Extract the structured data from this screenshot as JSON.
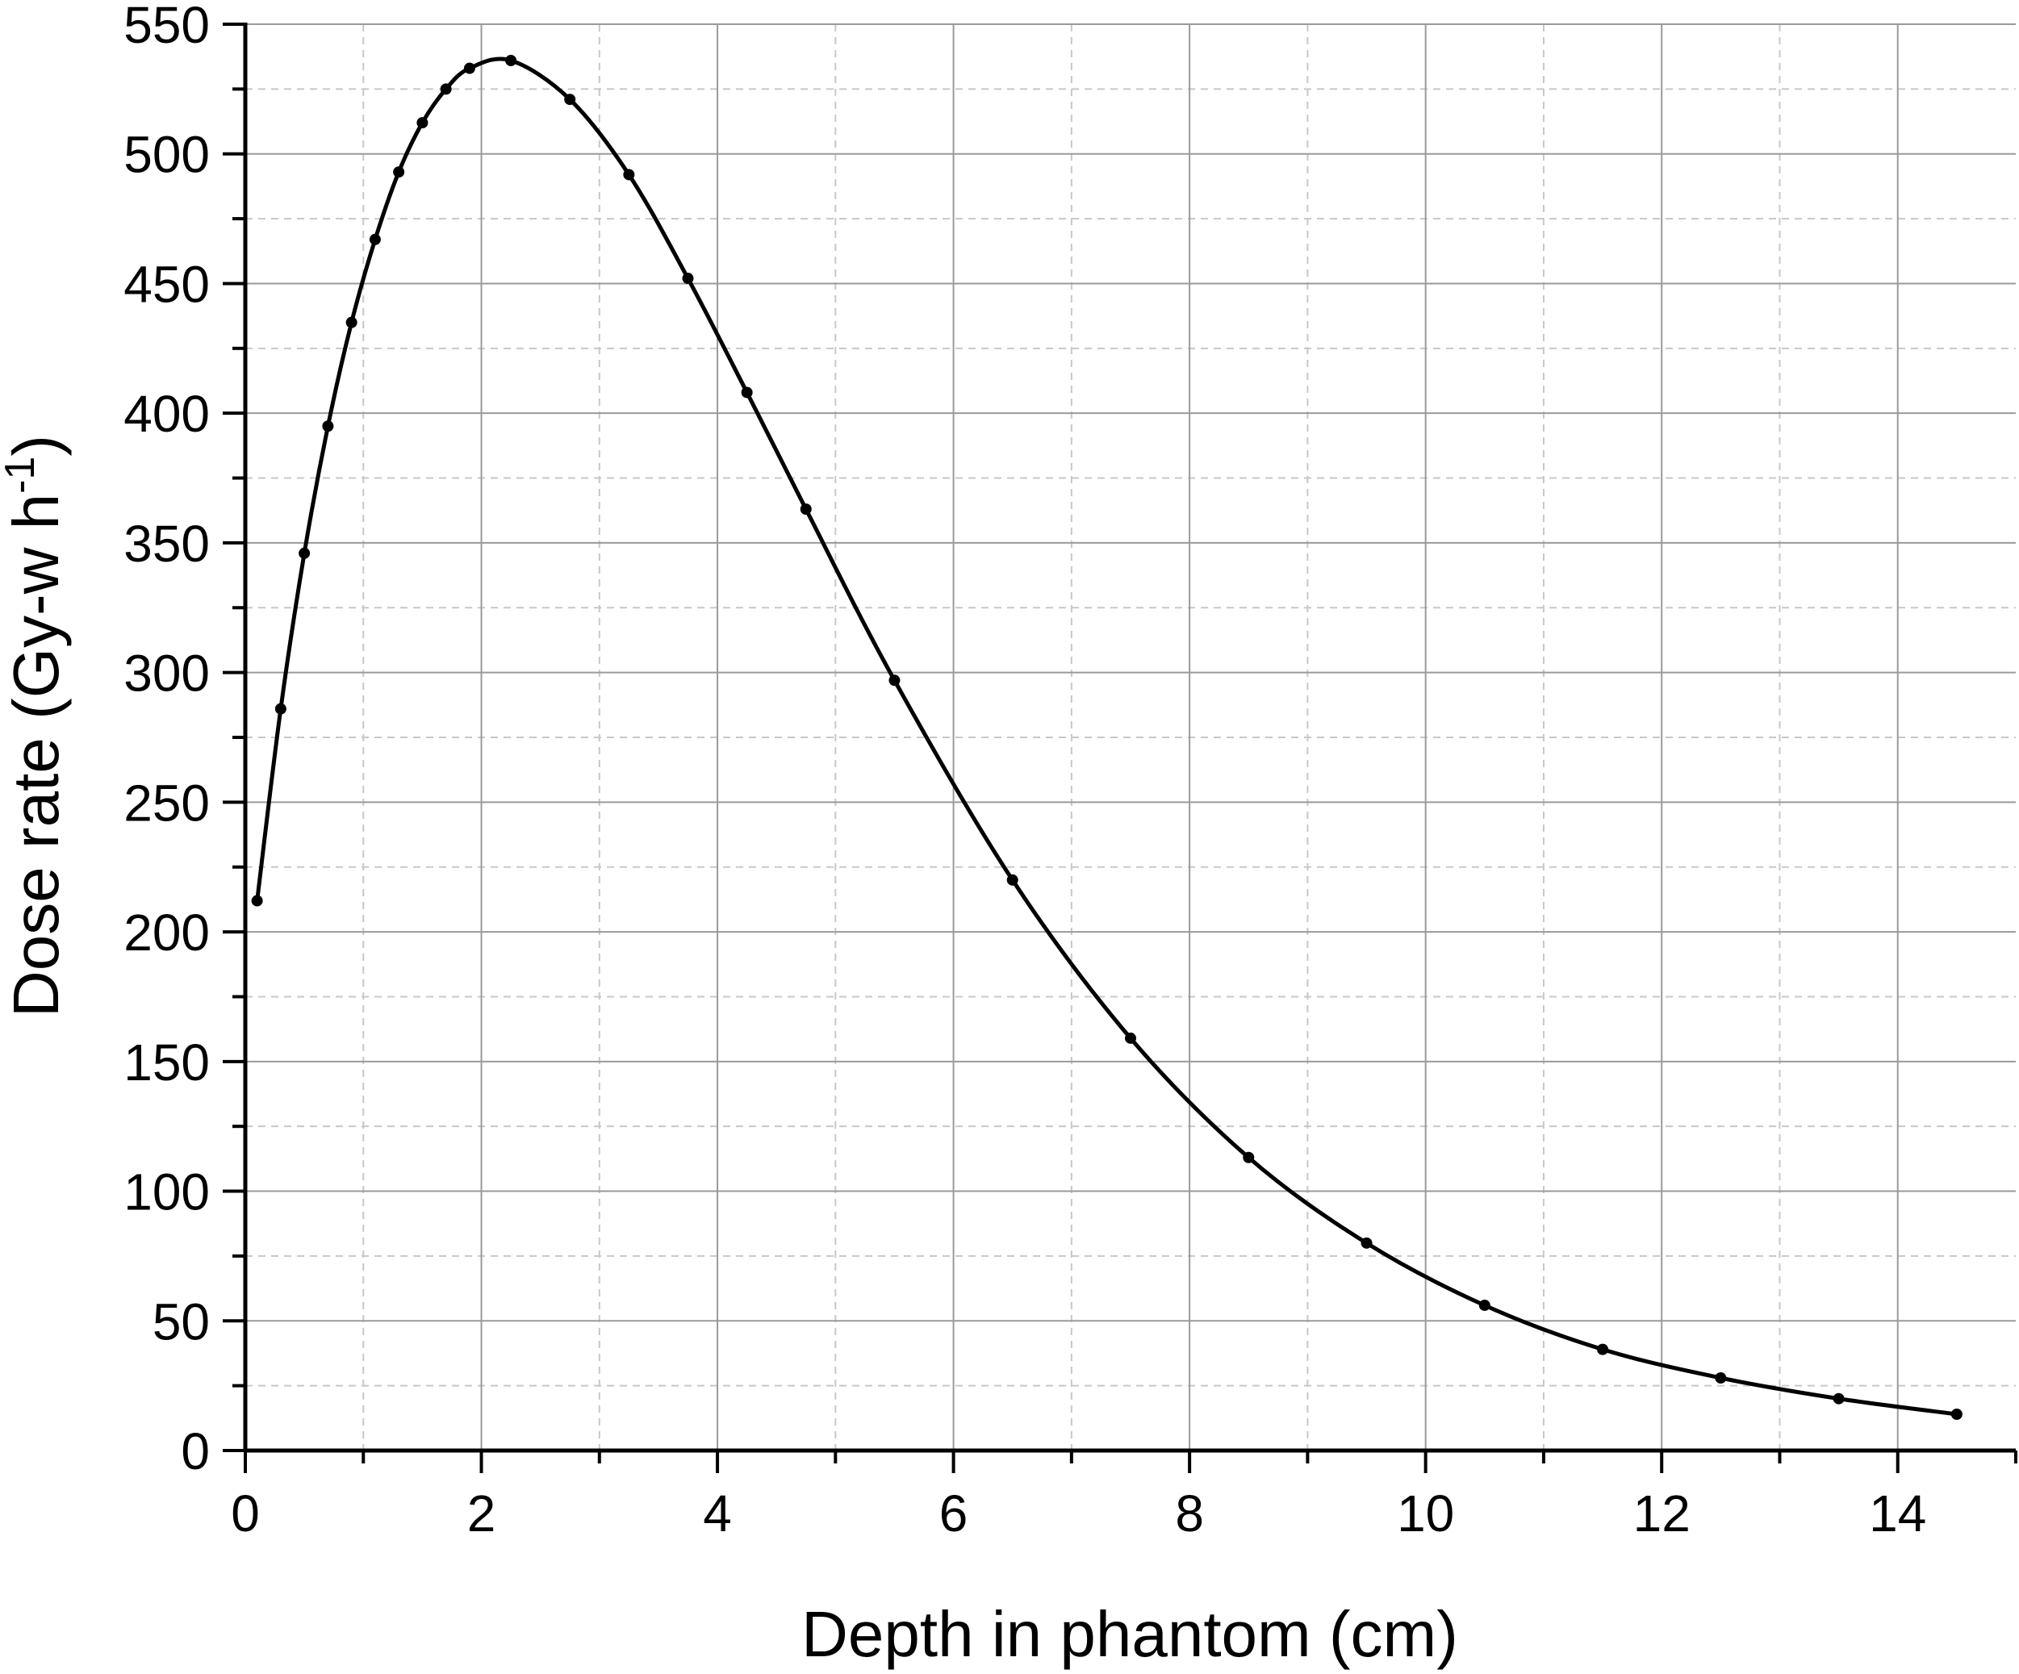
{
  "chart_data": {
    "type": "line",
    "title": "",
    "xlabel": "Depth in phantom (cm)",
    "ylabel": {
      "main": "Dose rate (Gy-w h",
      "superscript": "-1",
      "close": ")"
    },
    "xlim": [
      0,
      15
    ],
    "ylim": [
      0,
      550
    ],
    "x_ticks": [
      0,
      2,
      4,
      6,
      8,
      10,
      12,
      14
    ],
    "y_ticks": [
      0,
      50,
      100,
      150,
      200,
      250,
      300,
      350,
      400,
      450,
      500,
      550
    ],
    "grid": true,
    "minor_grid": true,
    "legend": "none",
    "series": [
      {
        "color": "#000000",
        "marker": "circle",
        "x": [
          0.1,
          0.3,
          0.5,
          0.7,
          0.9,
          1.1,
          1.3,
          1.5,
          1.7,
          1.9,
          2.25,
          2.75,
          3.25,
          3.75,
          4.25,
          4.75,
          5.5,
          6.5,
          7.5,
          8.5,
          9.5,
          10.5,
          11.5,
          12.5,
          13.5,
          14.5
        ],
        "y": [
          212,
          286,
          346,
          395,
          435,
          467,
          493,
          512,
          525,
          533,
          536,
          521,
          492,
          452,
          408,
          363,
          297,
          220,
          159,
          113,
          80,
          56,
          39,
          28,
          20,
          14
        ]
      }
    ]
  }
}
